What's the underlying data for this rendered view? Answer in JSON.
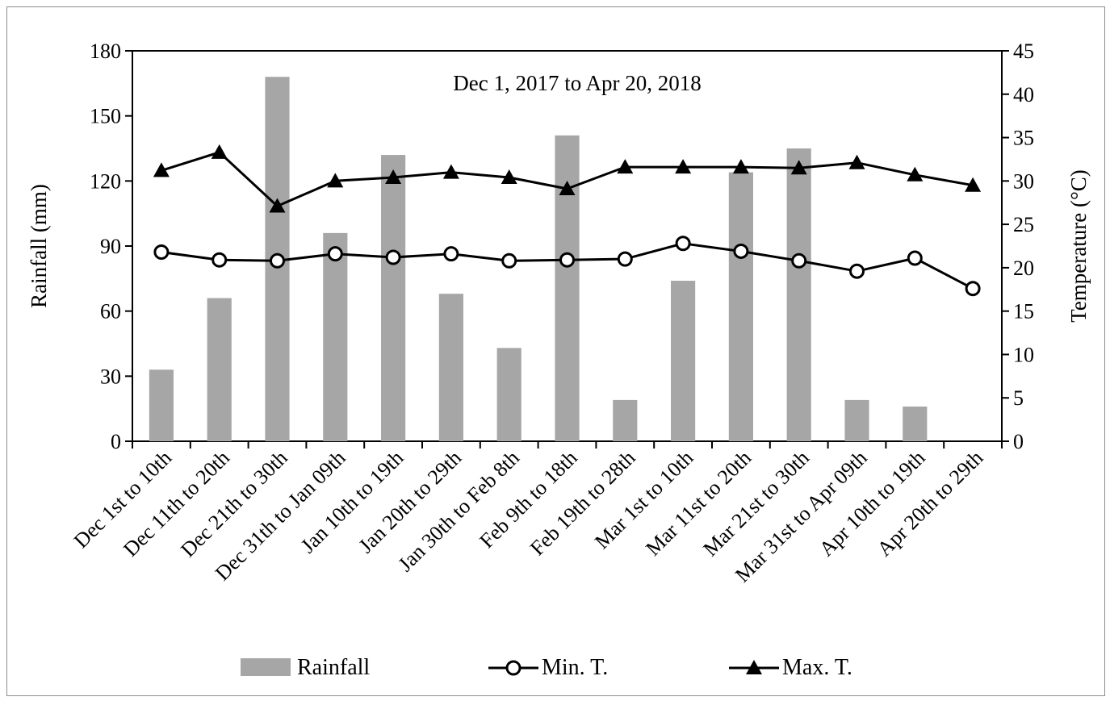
{
  "chart_data": {
    "type": "bar",
    "subtitle": "Dec 1, 2017 to Apr 20, 2018",
    "categories": [
      "Dec 1st to 10th",
      "Dec 11th to 20th",
      "Dec 21th to 30th",
      "Dec 31th to Jan 09th",
      "Jan 10th to 19th",
      "Jan 20th to 29th",
      "Jan 30th to Feb 8th",
      "Feb 9th to 18th",
      "Feb 19th to 28th",
      "Mar 1st to 10th",
      "Mar 11st to 20th",
      "Mar 21st to 30th",
      "Mar 31st to Apr 09th",
      "Apr 10th to 19th",
      "Apr 20th to 29th"
    ],
    "ylabel": "Rainfall (mm)",
    "y2label": "Temperature (°C)",
    "ylim": [
      0,
      180
    ],
    "y2lim": [
      0,
      45
    ],
    "yticks": [
      "0",
      "30",
      "60",
      "90",
      "120",
      "150",
      "180"
    ],
    "y2ticks": [
      "0",
      "5",
      "10",
      "15",
      "20",
      "25",
      "30",
      "35",
      "40",
      "45"
    ],
    "grid": false,
    "legend_position": "bottom",
    "series": [
      {
        "name": "Rainfall",
        "type": "bar",
        "axis": "left",
        "color": "#a6a6a6",
        "values": [
          33,
          66,
          168,
          96,
          132,
          68,
          43,
          141,
          19,
          74,
          124,
          135,
          19,
          16,
          0
        ]
      },
      {
        "name": "Min. T.",
        "type": "line",
        "axis": "right",
        "marker": "circle-open",
        "color": "#000000",
        "values": [
          21.8,
          20.9,
          20.8,
          21.6,
          21.2,
          21.6,
          20.8,
          20.9,
          21.0,
          22.8,
          21.9,
          20.8,
          19.6,
          21.1,
          17.6
        ]
      },
      {
        "name": "Max. T.",
        "type": "line",
        "axis": "right",
        "marker": "triangle-filled",
        "color": "#000000",
        "values": [
          31.2,
          33.3,
          27.1,
          30.0,
          30.4,
          31.0,
          30.4,
          29.1,
          31.6,
          31.6,
          31.6,
          31.5,
          32.1,
          30.7,
          29.5
        ]
      }
    ]
  }
}
